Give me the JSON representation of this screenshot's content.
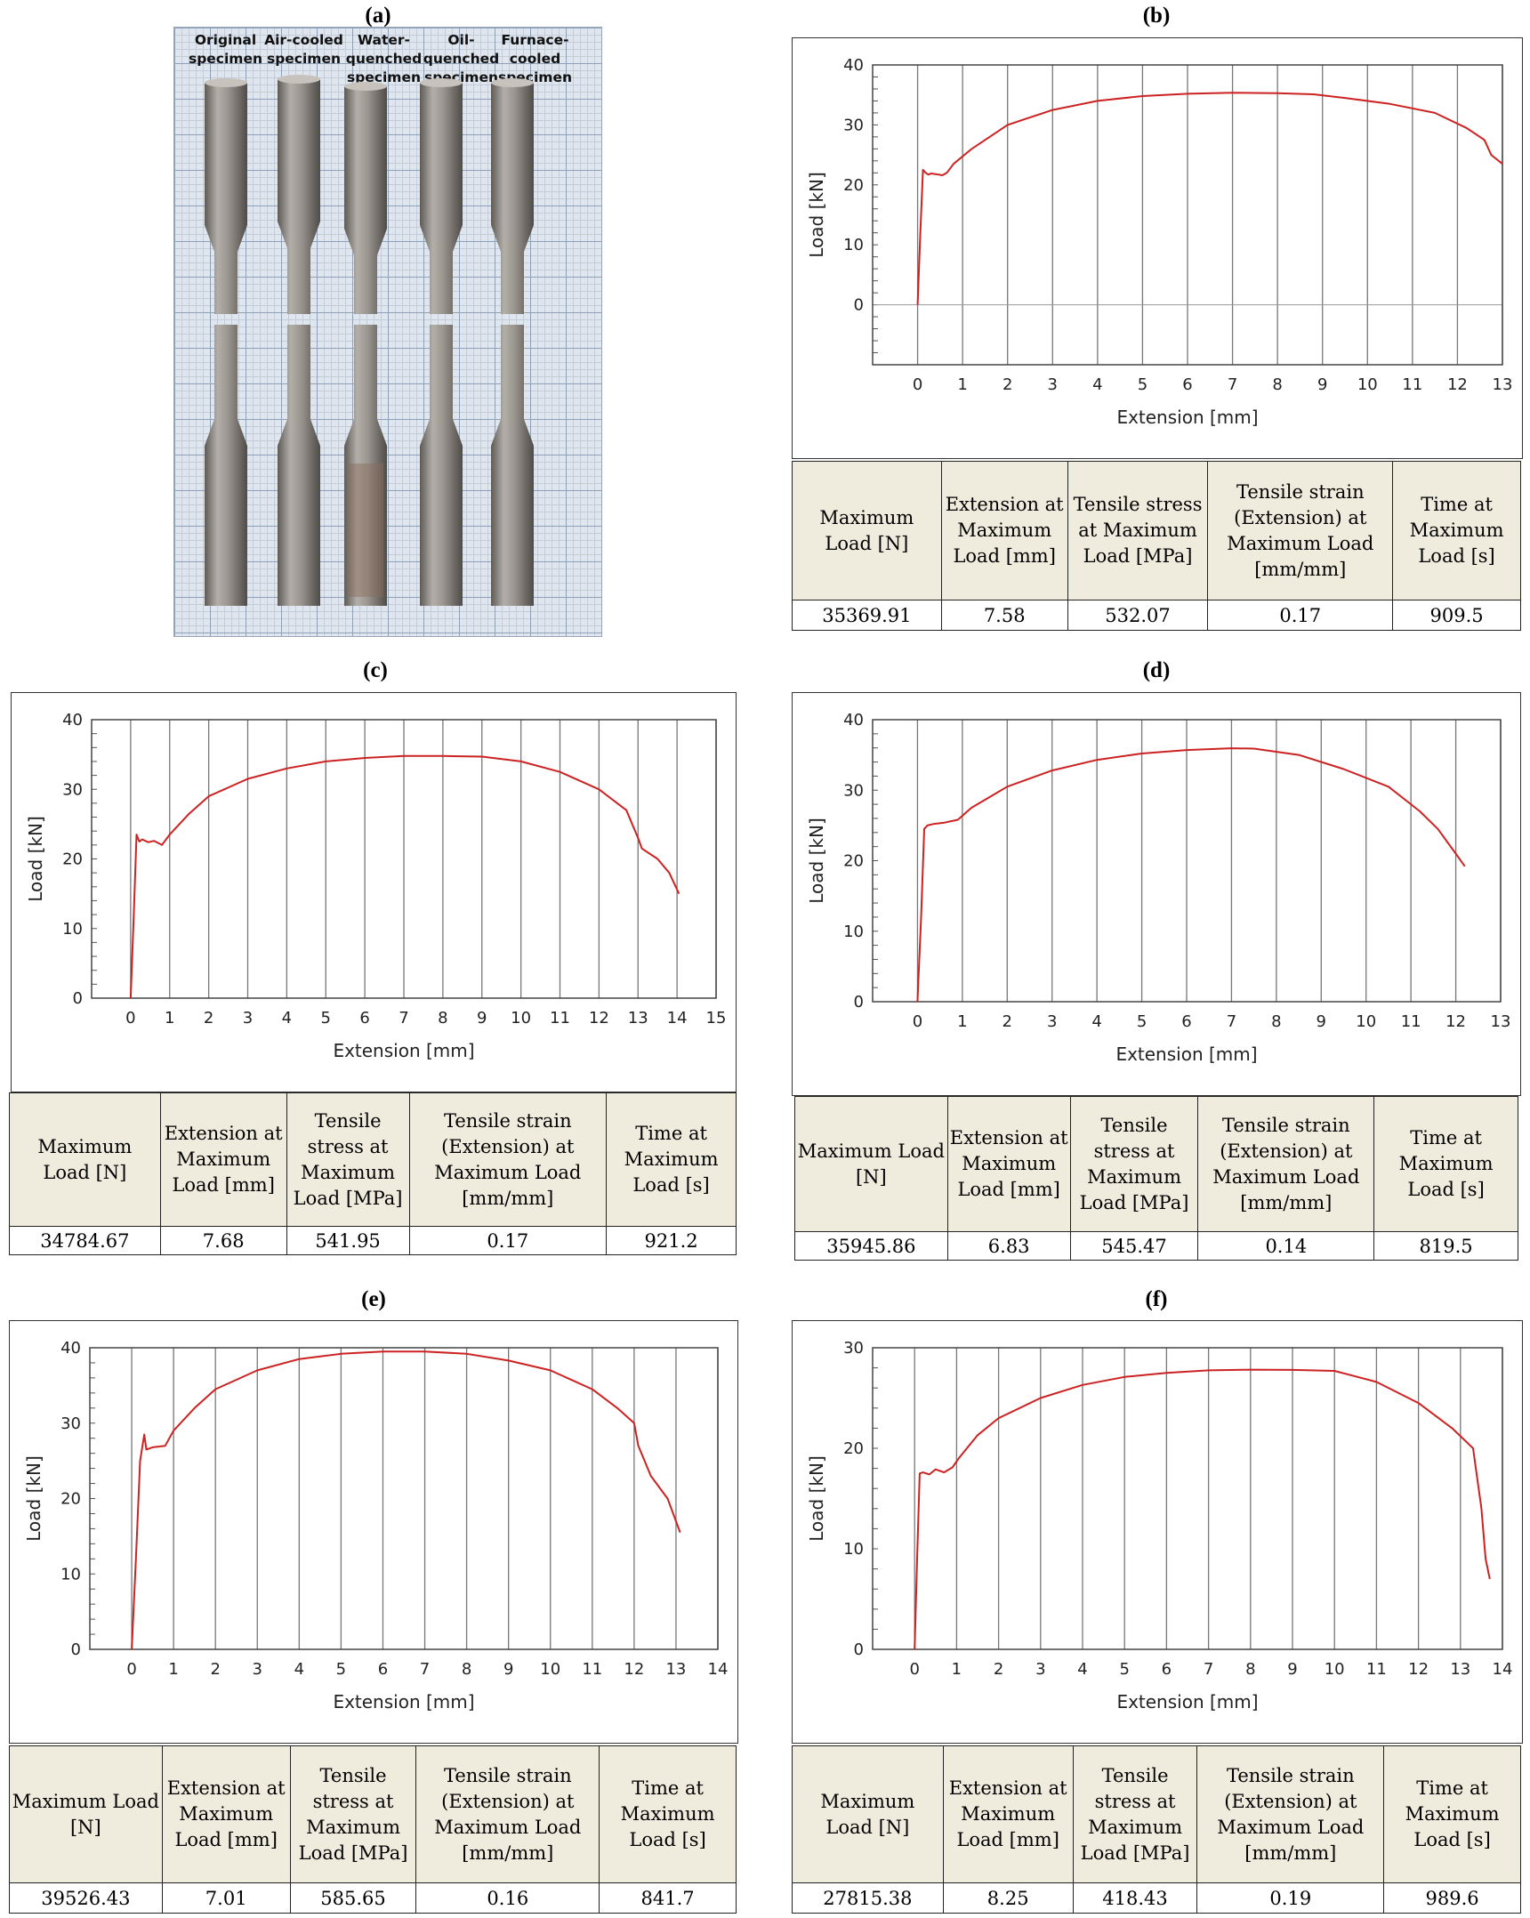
{
  "panels": [
    {
      "id": "a",
      "label": "(a)"
    },
    {
      "id": "b",
      "label": "(b)"
    },
    {
      "id": "c",
      "label": "(c)"
    },
    {
      "id": "d",
      "label": "(d)"
    },
    {
      "id": "e",
      "label": "(e)"
    },
    {
      "id": "f",
      "label": "(f)"
    }
  ],
  "photo": {
    "specimens": [
      {
        "label": "Original specimen"
      },
      {
        "label": "Air-cooled specimen"
      },
      {
        "label": "Water-quenched specimen"
      },
      {
        "label": "Oil-quenched specimen"
      },
      {
        "label": "Furnace-cooled specimen"
      }
    ],
    "colors": {
      "paper": "#dfe6ee",
      "grid": "#8fa1b8",
      "steel": "#8a8580",
      "rust": "#8a6a5a"
    }
  },
  "table_headers": [
    "Maximum Load [N]",
    "Extension at Maximum Load [mm]",
    "Tensile stress at Maximum Load [MPa]",
    "Tensile strain (Extension) at Maximum Load [mm/mm]",
    "Time at Maximum Load [s]"
  ],
  "chart_data": [
    {
      "type": "line",
      "panel": "b",
      "xlabel": "Extension [mm]",
      "ylabel": "Load [kN]",
      "xlim": [
        -1,
        13
      ],
      "ylim": [
        -10,
        40
      ],
      "xticks": [
        0,
        1,
        2,
        3,
        4,
        5,
        6,
        7,
        8,
        9,
        10,
        11,
        12,
        13
      ],
      "yticks": [
        0,
        10,
        20,
        30,
        40
      ],
      "grid": true,
      "color": "#cc2222",
      "x": [
        0,
        0.06,
        0.12,
        0.18,
        0.24,
        0.3,
        0.4,
        0.55,
        0.65,
        0.8,
        1.2,
        2,
        3,
        4,
        5,
        6,
        7,
        8,
        8.8,
        9.5,
        10.5,
        11.5,
        12.2,
        12.6,
        12.75,
        13
      ],
      "y": [
        0,
        12,
        22.5,
        22,
        21.7,
        21.9,
        21.8,
        21.6,
        22,
        23.5,
        26,
        30,
        32.5,
        34,
        34.8,
        35.2,
        35.37,
        35.3,
        35.1,
        34.5,
        33.5,
        32,
        29.5,
        27.5,
        25,
        23.5
      ],
      "table": {
        "values": [
          "35369.91",
          "7.58",
          "532.07",
          "0.17",
          "909.5"
        ]
      }
    },
    {
      "type": "line",
      "panel": "c",
      "xlabel": "Extension [mm]",
      "ylabel": "Load [kN]",
      "xlim": [
        -1,
        15
      ],
      "ylim": [
        0,
        40
      ],
      "xticks": [
        0,
        1,
        2,
        3,
        4,
        5,
        6,
        7,
        8,
        9,
        10,
        11,
        12,
        13,
        14,
        15
      ],
      "yticks": [
        0,
        10,
        20,
        30,
        40
      ],
      "grid": true,
      "color": "#cc2222",
      "x": [
        0,
        0.08,
        0.15,
        0.22,
        0.3,
        0.45,
        0.6,
        0.8,
        1,
        1.5,
        2,
        3,
        4,
        5,
        6,
        7,
        8,
        9,
        10,
        11,
        12,
        12.7,
        13,
        13.1,
        13.5,
        13.8,
        14.05
      ],
      "y": [
        0,
        12,
        23.5,
        22.5,
        22.8,
        22.4,
        22.6,
        22,
        23.5,
        26.5,
        29,
        31.5,
        33,
        34,
        34.5,
        34.8,
        34.78,
        34.7,
        34,
        32.5,
        30,
        27,
        23,
        21.5,
        20,
        18,
        15
      ],
      "table": {
        "values": [
          "34784.67",
          "7.68",
          "541.95",
          "0.17",
          "921.2"
        ]
      }
    },
    {
      "type": "line",
      "panel": "d",
      "xlabel": "Extension [mm]",
      "ylabel": "Load [kN]",
      "xlim": [
        -1,
        13
      ],
      "ylim": [
        0,
        40
      ],
      "xticks": [
        0,
        1,
        2,
        3,
        4,
        5,
        6,
        7,
        8,
        9,
        10,
        11,
        12,
        13
      ],
      "yticks": [
        0,
        10,
        20,
        30,
        40
      ],
      "grid": true,
      "color": "#cc2222",
      "x": [
        0,
        0.08,
        0.15,
        0.22,
        0.35,
        0.6,
        0.9,
        1.2,
        2,
        3,
        4,
        5,
        6,
        7,
        7.5,
        8.5,
        9.5,
        10.5,
        11.2,
        11.6,
        12,
        12.2
      ],
      "y": [
        0,
        12,
        24.5,
        25,
        25.2,
        25.4,
        25.8,
        27.5,
        30.5,
        32.8,
        34.3,
        35.2,
        35.7,
        35.95,
        35.9,
        35,
        33,
        30.5,
        27,
        24.5,
        21,
        19.2
      ],
      "table": {
        "values": [
          "35945.86",
          "6.83",
          "545.47",
          "0.14",
          "819.5"
        ]
      }
    },
    {
      "type": "line",
      "panel": "e",
      "xlabel": "Extension [mm]",
      "ylabel": "Load [kN]",
      "xlim": [
        -1,
        14
      ],
      "ylim": [
        0,
        40
      ],
      "xticks": [
        0,
        1,
        2,
        3,
        4,
        5,
        6,
        7,
        8,
        9,
        10,
        11,
        12,
        13,
        14
      ],
      "yticks": [
        0,
        10,
        20,
        30,
        40
      ],
      "grid": true,
      "color": "#cc2222",
      "x": [
        0,
        0.1,
        0.2,
        0.3,
        0.35,
        0.5,
        0.8,
        1,
        1.5,
        2,
        3,
        4,
        5,
        6,
        7,
        8,
        9,
        10,
        11,
        11.6,
        12,
        12.1,
        12.4,
        12.8,
        13.1
      ],
      "y": [
        0,
        12,
        25,
        28.5,
        26.5,
        26.8,
        27,
        29,
        32,
        34.5,
        37,
        38.5,
        39.2,
        39.5,
        39.5,
        39.2,
        38.3,
        37,
        34.5,
        32,
        30,
        27,
        23,
        20,
        15.5
      ],
      "table": {
        "values": [
          "39526.43",
          "7.01",
          "585.65",
          "0.16",
          "841.7"
        ]
      }
    },
    {
      "type": "line",
      "panel": "f",
      "xlabel": "Extension [mm]",
      "ylabel": "Load [kN]",
      "xlim": [
        -1,
        14
      ],
      "ylim": [
        0,
        30
      ],
      "xticks": [
        0,
        1,
        2,
        3,
        4,
        5,
        6,
        7,
        8,
        9,
        10,
        11,
        12,
        13,
        14
      ],
      "yticks": [
        0,
        10,
        20,
        30
      ],
      "grid": true,
      "color": "#cc2222",
      "x": [
        0,
        0.06,
        0.12,
        0.2,
        0.35,
        0.5,
        0.7,
        0.9,
        1.05,
        1.5,
        2,
        3,
        4,
        5,
        6,
        7,
        8,
        9,
        10,
        11,
        12,
        12.8,
        13.3,
        13.5,
        13.6,
        13.7
      ],
      "y": [
        0,
        9,
        17.5,
        17.6,
        17.4,
        17.9,
        17.6,
        18.1,
        19,
        21.3,
        23,
        25,
        26.3,
        27.1,
        27.5,
        27.75,
        27.82,
        27.8,
        27.7,
        26.6,
        24.5,
        22,
        20,
        14,
        9,
        7
      ],
      "table": {
        "values": [
          "27815.38",
          "8.25",
          "418.43",
          "0.19",
          "989.6"
        ]
      }
    }
  ]
}
